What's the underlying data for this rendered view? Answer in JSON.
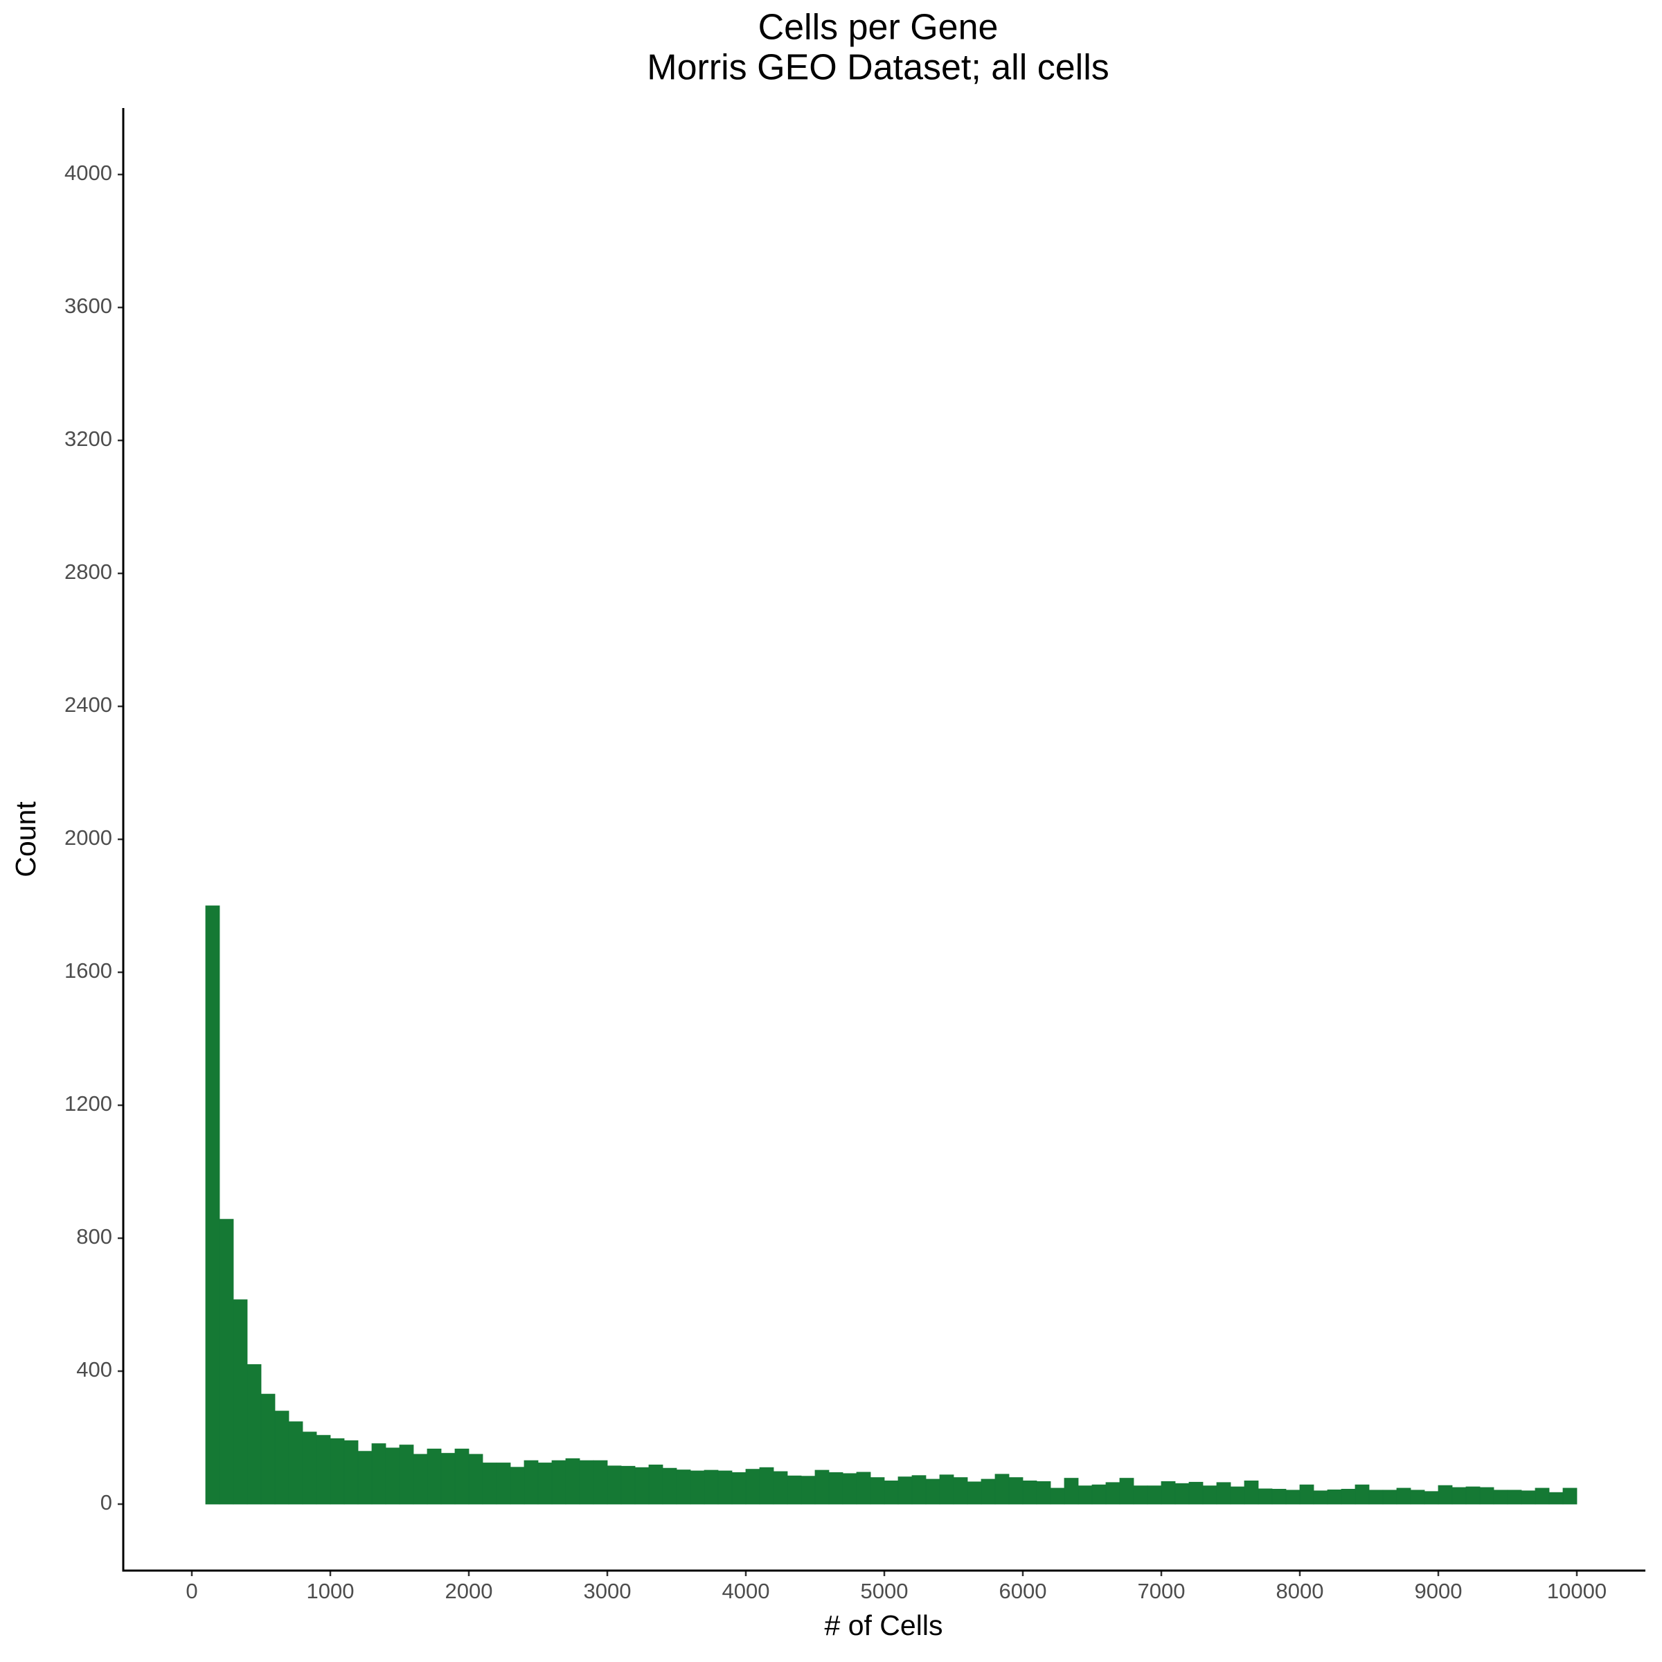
{
  "chart_data": {
    "type": "histogram",
    "title": "Cells per Gene",
    "subtitle": "Morris GEO Dataset; all cells",
    "x_label": "# of Cells",
    "y_label": "Count",
    "color": "#157934",
    "bins": [
      100,
      200,
      300,
      400,
      500,
      600,
      700,
      800,
      900,
      1000,
      1100,
      1200,
      1300,
      1400,
      1500,
      1600,
      1700,
      1800,
      1900,
      2000,
      2100,
      2200,
      2300,
      2400,
      2500,
      2600,
      2700,
      2800,
      2900,
      3000,
      3100,
      3200,
      3300,
      3400,
      3500,
      3600,
      3700,
      3800,
      3900,
      4000,
      4100,
      4200,
      4300,
      4400,
      4500,
      4600,
      4700,
      4800,
      4900,
      5000,
      5100,
      5200,
      5300,
      5400,
      5500,
      5600,
      5700,
      5800,
      5900,
      6000,
      6100,
      6200,
      6300,
      6400,
      6500,
      6600,
      6700,
      6800,
      6900,
      7000,
      7100,
      7200,
      7300,
      7400,
      7500,
      7600,
      7700,
      7800,
      7900,
      8000,
      8100,
      8200,
      8300,
      8400,
      8500,
      8600,
      8700,
      8800,
      8900,
      9000,
      9100,
      9200,
      9300,
      9400,
      9500,
      9600,
      9700,
      9800,
      9900,
      10000
    ],
    "values": [
      1800,
      857,
      615,
      420,
      331,
      280,
      248,
      217,
      207,
      197,
      191,
      159,
      182,
      169,
      178,
      150,
      166,
      153,
      166,
      150,
      124,
      124,
      111,
      131,
      124,
      131,
      137,
      131,
      131,
      115,
      114,
      110,
      118,
      108,
      103,
      100,
      102,
      100,
      95,
      105,
      110,
      98,
      85,
      84,
      102,
      95,
      92,
      96,
      80,
      70,
      82,
      86,
      75,
      88,
      80,
      67,
      75,
      90,
      80,
      70,
      68,
      48,
      78,
      55,
      58,
      65,
      78,
      55,
      55,
      68,
      62,
      66,
      55,
      65,
      52,
      70,
      46,
      45,
      42,
      58,
      40,
      43,
      45,
      58,
      42,
      42,
      48,
      42,
      38,
      56,
      50,
      52,
      50,
      42,
      42,
      40,
      48,
      35,
      48,
      40
    ],
    "xlim": [
      -495,
      10495
    ],
    "xticks": [
      0,
      1000,
      2000,
      3000,
      4000,
      5000,
      6000,
      7000,
      8000,
      9000,
      10000
    ],
    "ylim": [
      -200,
      4200
    ],
    "yticks": [
      0,
      400,
      800,
      1200,
      1600,
      2000,
      2400,
      2800,
      3200,
      3600,
      4000
    ]
  }
}
